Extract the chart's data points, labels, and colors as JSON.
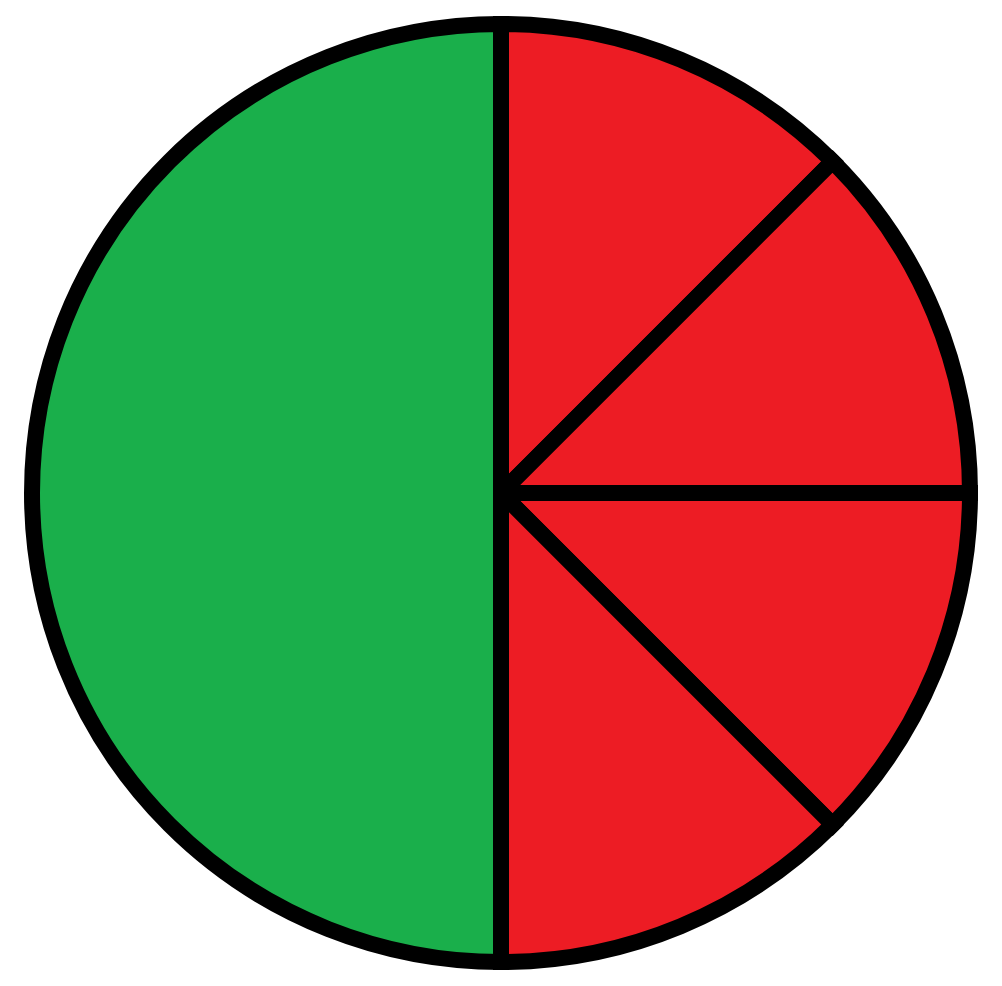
{
  "chart_data": {
    "type": "pie",
    "categories": [
      null,
      null,
      null,
      null,
      null
    ],
    "values": [
      12.5,
      12.5,
      12.5,
      12.5,
      50
    ],
    "colors": [
      "#ed1c24",
      "#ed1c24",
      "#ed1c24",
      "#ed1c24",
      "#1aaf4b"
    ]
  }
}
